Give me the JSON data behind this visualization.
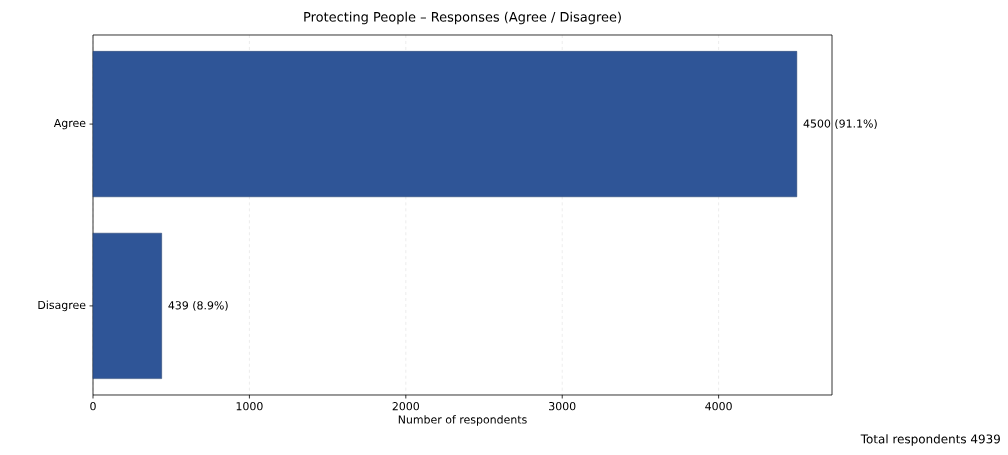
{
  "chart_data": {
    "type": "bar",
    "orientation": "horizontal",
    "title": "Protecting People – Responses (Agree / Disagree)",
    "xlabel": "Number of respondents",
    "categories": [
      "Agree",
      "Disagree"
    ],
    "values": [
      4500,
      439
    ],
    "color": "#2f5597",
    "value_labels": [
      "4500 (91.1%)",
      "439 (8.9%)"
    ],
    "xlim": [
      0,
      4725
    ],
    "xticks": [
      0,
      1000,
      2000,
      3000,
      4000
    ],
    "grid": "x",
    "annotations": [
      "Total respondents 4939"
    ]
  }
}
